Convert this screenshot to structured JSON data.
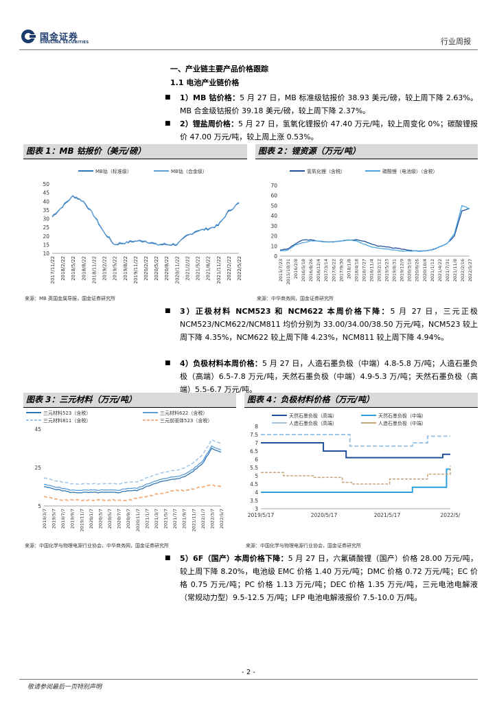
{
  "header": {
    "logo_cn": "国金证券",
    "logo_en": "SINOLINK SECURITIES",
    "report_type": "行业周报"
  },
  "section": {
    "h1": "一、产业链主要产品价格跟踪",
    "h2": "1.1 电池产业链价格"
  },
  "paras": {
    "p1": {
      "label": "1）MB 钴价格：",
      "text": "5 月 27 日，MB 标准级钴报价 38.93 美元/磅，较上周下降 2.63%。MB 合金级钴报价 39.18 美元/磅，较上周下降 2.37%。"
    },
    "p2": {
      "label": "2）锂盐周价格：",
      "text": "5 月 27 日，氢氧化锂报价 47.40 万元/吨，较上周变化 0%；碳酸锂报价 47.00 万元/吨，较上周上涨 0.53%。"
    },
    "p3": {
      "label": "3）正极材料 NCM523 和 NCM622 本周价格下降：",
      "text": "5 月 27 日，三元正极 NCM523/NCM622/NCM811 均价分别为 33.00/34.00/38.50 万元/吨，NCM523 较上周下降 4.35%，NCM622 较上周下降 4.23%，NCM811 较上周下降 4.94%。"
    },
    "p4": {
      "label": "4）负极材料本周价格：",
      "text": "5 月 27 日，人造石墨负极（中端）4.8-5.8 万/吨；人造石墨负极（高端）6.5-7.8 万元/吨，天然石墨负极（中端）4.9-5.3 万/吨；天然石墨负极（高端）5.5-6.7 万元/吨。"
    },
    "p5": {
      "label": "5）6F（国产）本周价格下降：",
      "text": "5 月 27 日，六氟磷酸锂（国产）价格 28.00 万元/吨，较上周下降 8.20%，电池级 EMC 价格 1.40 万元/吨；DMC 价格 0.72 万元/吨；EC 价格 0.75 万元/吨；PC 价格 1.13 万元/吨；DEC 价格 1.35 万元/吨，三元电池电解液（常规动力型）9.5-12.5 万/吨；LFP 电池电解液报价 7.5-10.0 万/吨。"
    }
  },
  "figures": {
    "f1": {
      "title": "图表 1：MB 钴报价（美元/磅）",
      "source": "来源：MB 英国金属导报，国金证券研究所"
    },
    "f2": {
      "title": "图表 2：锂资源（万元/吨）",
      "source": "来源：中华商务网，国金证券研究所"
    },
    "f3": {
      "title": "图表 3：三元材料（万元/吨）",
      "source": "来源：中国化学与物理电源行业协会，中华商务网，国金证券研究所"
    },
    "f4": {
      "title": "图表 4：负极材料价格（万元/吨）",
      "source": "来源：中国化学与物理电源行业协会，国金证券研究所"
    }
  },
  "chart_data": [
    {
      "type": "line",
      "title": "MB 钴报价（美元/磅）",
      "series": [
        {
          "name": "MB钴（标准级）",
          "color": "#2e75b6"
        },
        {
          "name": "MB钴（合金级）",
          "color": "#5b9bd5"
        }
      ],
      "x": [
        "2017/11/22",
        "2018/2/22",
        "2018/5/22",
        "2018/8/22",
        "2018/11/22",
        "2019/2/22",
        "2019/5/22",
        "2019/8/22",
        "2019/11/22",
        "2020/2/22",
        "2020/5/22",
        "2020/8/22",
        "2020/11/22",
        "2021/2/22",
        "2021/5/22",
        "2021/8/22",
        "2021/11/22",
        "2022/2/22",
        "2022/5/22"
      ],
      "values": [
        31,
        37,
        43,
        40,
        32,
        22,
        15,
        16,
        17,
        17,
        15,
        15,
        15,
        20,
        23,
        24,
        26,
        34,
        39
      ],
      "ylim": [
        10,
        50
      ],
      "yticks": [
        10,
        15,
        20,
        25,
        30,
        35,
        40,
        45,
        50
      ]
    },
    {
      "type": "line",
      "title": "锂资源（万元/吨）",
      "series": [
        {
          "name": "氢氧化锂（含税）",
          "color": "#1f4e9a"
        },
        {
          "name": "碳酸锂（电池级）（含税）",
          "color": "#4aa3df"
        }
      ],
      "x": [
        "2015/7/23",
        "2015/10/31",
        "2016/2/8",
        "2016/5/18",
        "2016/8/26",
        "2016/12/4",
        "2017/3/14",
        "2017/6/22",
        "2017/9/30",
        "2018/1/8",
        "2018/4/18",
        "2018/7/27",
        "2018/11/4",
        "2019/2/12",
        "2019/5/23",
        "2019/8/31",
        "2019/12/9",
        "2020/3/18",
        "2020/6/26",
        "2020/10/4",
        "2021/1/12",
        "2021/4/22",
        "2021/7/31",
        "2021/11/8",
        "2022/2/16",
        "2022/5/27"
      ],
      "values_lioh": [
        6,
        7,
        12,
        16,
        16,
        15,
        14,
        14,
        15,
        16,
        16,
        15,
        12,
        10,
        9,
        8,
        7,
        6,
        5,
        5,
        6,
        9,
        12,
        20,
        45,
        47
      ],
      "values_li2co3": [
        5,
        6,
        11,
        13,
        15,
        15,
        14,
        14,
        15,
        16,
        15,
        12,
        9,
        8,
        7,
        6,
        5,
        5,
        5,
        5,
        6,
        9,
        12,
        22,
        50,
        47
      ],
      "ylim": [
        0,
        70
      ],
      "yticks": [
        0,
        10,
        20,
        30,
        40,
        50,
        60,
        70
      ]
    },
    {
      "type": "line",
      "title": "三元材料（万元/吨）",
      "series": [
        {
          "name": "三元材料523（含税）",
          "color": "#2e75b6",
          "dash": "solid"
        },
        {
          "name": "三元材料622（含税）",
          "color": "#5b9bd5",
          "dash": "solid"
        },
        {
          "name": "三元材料811（含税）",
          "color": "#9dc3e6",
          "dash": "dashed"
        },
        {
          "name": "三元前驱体523（含税）",
          "color": "#f4b183",
          "dash": "dashed"
        }
      ],
      "x": [
        "2019/3/7",
        "2019/5/7",
        "2019/7/7",
        "2019/9/7",
        "2019/11/7",
        "2020/1/7",
        "2020/3/7",
        "2020/5/7",
        "2020/7/7",
        "2020/9/7",
        "2020/11/7",
        "2021/1/7",
        "2021/3/7",
        "2021/5/7",
        "2021/7/7",
        "2021/9/7",
        "2021/11/7",
        "2022/1/7",
        "2022/3/7",
        "2022/5/7"
      ],
      "ylim": [
        5,
        45
      ],
      "yticks": [
        5,
        25,
        45
      ]
    },
    {
      "type": "line",
      "title": "负极材料价格（万元/吨）",
      "series": [
        {
          "name": "天然石墨负极（高端）",
          "color": "#1f4e9a"
        },
        {
          "name": "天然石墨负极（中端）",
          "color": "#2e9fd8"
        },
        {
          "name": "人造石墨负极（高端）",
          "color": "#9dc3e6"
        },
        {
          "name": "人造石墨负极（中端）",
          "color": "#c9a27a"
        }
      ],
      "x": [
        "2019/5/17",
        "2020/5/17",
        "2021/5/17",
        "2022/5/"
      ],
      "ylim": [
        3,
        8
      ],
      "yticks": [
        3,
        3.5,
        4,
        4.5,
        5,
        5.5,
        6,
        6.5,
        7,
        7.5,
        8
      ]
    }
  ]
}
